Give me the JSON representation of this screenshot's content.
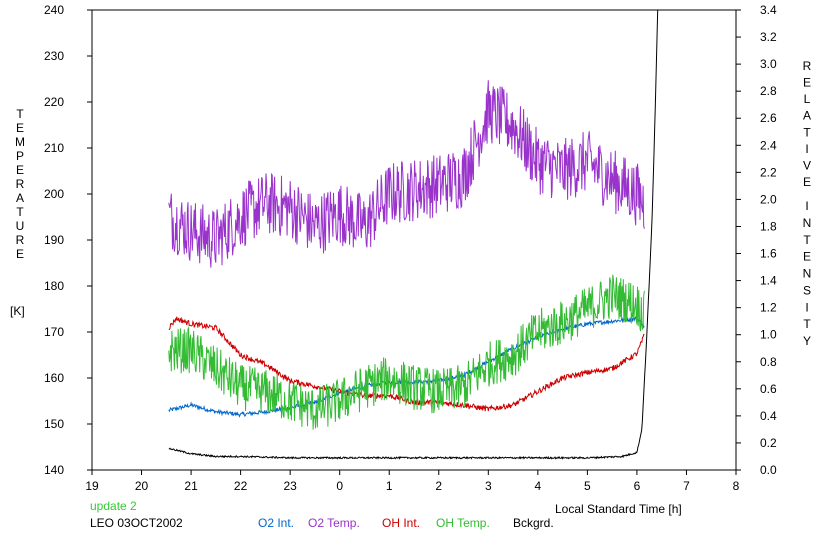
{
  "chart_data": {
    "type": "line",
    "x_label": "Local Standard Time [h]",
    "xlim": [
      19,
      8
    ],
    "x_ticks": [
      "19",
      "20",
      "21",
      "22",
      "23",
      "0",
      "1",
      "2",
      "3",
      "4",
      "5",
      "6",
      "7",
      "8"
    ],
    "y_left_label": "TEMPERATURE",
    "y_left_unit": "[K]",
    "y_left_lim": [
      140,
      240
    ],
    "y_left_ticks": [
      "140",
      "150",
      "160",
      "170",
      "180",
      "190",
      "200",
      "210",
      "220",
      "230",
      "240"
    ],
    "y_right_label": "RELATIVE INTENSITY",
    "y_right_lim": [
      0,
      3.4
    ],
    "y_right_ticks": [
      "0.0",
      "0.2",
      "0.4",
      "0.6",
      "0.8",
      "1.0",
      "1.2",
      "1.4",
      "1.6",
      "1.8",
      "2.0",
      "2.2",
      "2.4",
      "2.6",
      "2.8",
      "3.0",
      "3.2",
      "3.4"
    ],
    "note_update": "update 2",
    "station_label": "LEO 03OCT2002",
    "colors": {
      "o2_int": "#0066cc",
      "o2_temp": "#9933cc",
      "oh_int": "#cc0000",
      "oh_temp": "#33bb33",
      "bckgrd": "#000000",
      "update": "#33cc33"
    },
    "series": [
      {
        "name": "O2 Int.",
        "axis": "right",
        "noise": 0.015,
        "points": [
          [
            20.55,
            0.44
          ],
          [
            21.0,
            0.48
          ],
          [
            21.5,
            0.43
          ],
          [
            22.0,
            0.41
          ],
          [
            22.5,
            0.43
          ],
          [
            23.0,
            0.46
          ],
          [
            23.5,
            0.5
          ],
          [
            24.0,
            0.57
          ],
          [
            24.5,
            0.62
          ],
          [
            25.0,
            0.65
          ],
          [
            25.5,
            0.65
          ],
          [
            26.0,
            0.66
          ],
          [
            26.5,
            0.7
          ],
          [
            27.0,
            0.8
          ],
          [
            27.5,
            0.9
          ],
          [
            28.0,
            0.98
          ],
          [
            28.5,
            1.04
          ],
          [
            29.0,
            1.08
          ],
          [
            29.5,
            1.1
          ],
          [
            30.0,
            1.12
          ],
          [
            30.15,
            1.06
          ]
        ]
      },
      {
        "name": "O2 Temp.",
        "axis": "left",
        "noise": 7,
        "points": [
          [
            20.55,
            195
          ],
          [
            21.0,
            192
          ],
          [
            21.5,
            190
          ],
          [
            22.0,
            195
          ],
          [
            22.5,
            198
          ],
          [
            23.0,
            197
          ],
          [
            23.5,
            193
          ],
          [
            24.0,
            196
          ],
          [
            24.5,
            193
          ],
          [
            25.0,
            200
          ],
          [
            25.5,
            201
          ],
          [
            26.0,
            202
          ],
          [
            26.5,
            204
          ],
          [
            27.0,
            218
          ],
          [
            27.5,
            215
          ],
          [
            28.0,
            207
          ],
          [
            28.5,
            205
          ],
          [
            29.0,
            207
          ],
          [
            29.5,
            203
          ],
          [
            30.0,
            200
          ],
          [
            30.15,
            198
          ]
        ]
      },
      {
        "name": "OH Int.",
        "axis": "right",
        "noise": 0.02,
        "points": [
          [
            20.55,
            1.05
          ],
          [
            20.7,
            1.12
          ],
          [
            21.0,
            1.08
          ],
          [
            21.5,
            1.05
          ],
          [
            22.0,
            0.85
          ],
          [
            22.5,
            0.78
          ],
          [
            23.0,
            0.66
          ],
          [
            23.5,
            0.62
          ],
          [
            24.0,
            0.58
          ],
          [
            24.5,
            0.55
          ],
          [
            25.0,
            0.55
          ],
          [
            25.5,
            0.5
          ],
          [
            26.0,
            0.5
          ],
          [
            26.5,
            0.48
          ],
          [
            27.0,
            0.45
          ],
          [
            27.5,
            0.48
          ],
          [
            28.0,
            0.58
          ],
          [
            28.5,
            0.68
          ],
          [
            29.0,
            0.72
          ],
          [
            29.5,
            0.75
          ],
          [
            30.0,
            0.86
          ],
          [
            30.1,
            0.95
          ],
          [
            30.15,
            1.0
          ]
        ]
      },
      {
        "name": "OH Temp.",
        "axis": "left",
        "noise": 5,
        "points": [
          [
            20.55,
            166
          ],
          [
            21.0,
            166
          ],
          [
            21.5,
            162
          ],
          [
            22.0,
            158
          ],
          [
            22.5,
            157
          ],
          [
            23.0,
            155
          ],
          [
            23.5,
            153
          ],
          [
            24.0,
            155
          ],
          [
            24.5,
            158
          ],
          [
            25.0,
            160
          ],
          [
            25.5,
            158
          ],
          [
            26.0,
            157
          ],
          [
            26.5,
            158
          ],
          [
            27.0,
            163
          ],
          [
            27.5,
            165
          ],
          [
            28.0,
            170
          ],
          [
            28.5,
            172
          ],
          [
            29.0,
            175
          ],
          [
            29.5,
            178
          ],
          [
            30.0,
            176
          ],
          [
            30.15,
            174
          ]
        ]
      },
      {
        "name": "Bckgrd.",
        "axis": "right",
        "noise": 0.006,
        "points": [
          [
            20.55,
            0.16
          ],
          [
            21.0,
            0.12
          ],
          [
            21.5,
            0.1
          ],
          [
            22.0,
            0.1
          ],
          [
            23.0,
            0.09
          ],
          [
            24.0,
            0.09
          ],
          [
            25.0,
            0.09
          ],
          [
            26.0,
            0.09
          ],
          [
            27.0,
            0.09
          ],
          [
            28.0,
            0.09
          ],
          [
            29.0,
            0.09
          ],
          [
            29.7,
            0.1
          ],
          [
            30.0,
            0.13
          ],
          [
            30.1,
            0.3
          ],
          [
            30.2,
            1.0
          ],
          [
            30.3,
            1.8
          ],
          [
            30.35,
            2.4
          ],
          [
            30.42,
            3.4
          ]
        ]
      }
    ]
  }
}
